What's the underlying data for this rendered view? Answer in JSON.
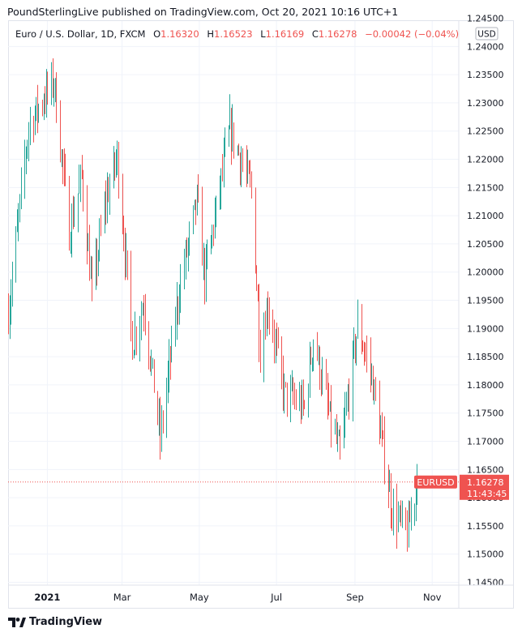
{
  "publisher_line": "PoundSterlingLive published on TradingView.com, Oct 20, 2021 10:16 UTC+1",
  "legend": {
    "symbol": "Euro / U.S. Dollar, 1D, FXCM",
    "open_label": "O",
    "open": "1.16320",
    "high_label": "H",
    "high": "1.16523",
    "low_label": "L",
    "low": "1.16169",
    "close_label": "C",
    "close": "1.16278",
    "change": "−0.00042 (−0.04%)"
  },
  "price_axis": {
    "currency": "USD"
  },
  "last_price": {
    "symbol": "EURUSD",
    "price": "1.16278",
    "countdown": "11:43:45"
  },
  "footer": {
    "brand": "TradingView"
  },
  "colors": {
    "up": "#26a69a",
    "down": "#ef5350",
    "grid": "#f0f3fa",
    "axis_text": "#131722"
  },
  "chart_data": {
    "type": "ohlc",
    "ylim": [
      1.1445,
      1.2445
    ],
    "y_ticks": [
      "1.14500",
      "1.15000",
      "1.15500",
      "1.16000",
      "1.16500",
      "1.17000",
      "1.17500",
      "1.18000",
      "1.18500",
      "1.19000",
      "1.19500",
      "1.20000",
      "1.20500",
      "1.21000",
      "1.21500",
      "1.22000",
      "1.22500",
      "1.23000",
      "1.23500",
      "1.24000",
      "1.24500"
    ],
    "x_ticks": [
      {
        "label": "2021",
        "date": "2021-01-01",
        "bold": true
      },
      {
        "label": "Mar",
        "date": "2021-03-01"
      },
      {
        "label": "May",
        "date": "2021-05-01"
      },
      {
        "label": "Jul",
        "date": "2021-07-01"
      },
      {
        "label": "Sep",
        "date": "2021-09-01"
      },
      {
        "label": "Nov",
        "date": "2021-11-01"
      }
    ],
    "start_date": "2020-12-01",
    "end_date": "2021-11-22",
    "last_date": "2021-10-20",
    "last_value": 1.16278,
    "anchors": [
      [
        "2020-12-01",
        1.193
      ],
      [
        "2020-12-17",
        1.226
      ],
      [
        "2021-01-06",
        1.234
      ],
      [
        "2021-01-18",
        1.207
      ],
      [
        "2021-01-28",
        1.217
      ],
      [
        "2021-02-05",
        1.196
      ],
      [
        "2021-02-16",
        1.213
      ],
      [
        "2021-02-25",
        1.2205
      ],
      [
        "2021-03-09",
        1.1875
      ],
      [
        "2021-03-18",
        1.1945
      ],
      [
        "2021-03-31",
        1.1705
      ],
      [
        "2021-04-15",
        1.197
      ],
      [
        "2021-04-29",
        1.2125
      ],
      [
        "2021-05-05",
        1.199
      ],
      [
        "2021-05-25",
        1.2255
      ],
      [
        "2021-06-11",
        1.2145
      ],
      [
        "2021-06-18",
        1.186
      ],
      [
        "2021-06-24",
        1.1945
      ],
      [
        "2021-07-07",
        1.1785
      ],
      [
        "2021-07-23",
        1.176
      ],
      [
        "2021-07-30",
        1.1885
      ],
      [
        "2021-08-12",
        1.174
      ],
      [
        "2021-08-20",
        1.1675
      ],
      [
        "2021-09-03",
        1.1905
      ],
      [
        "2021-09-14",
        1.1815
      ],
      [
        "2021-09-30",
        1.158
      ],
      [
        "2021-10-12",
        1.1535
      ],
      [
        "2021-10-20",
        1.1628
      ]
    ]
  }
}
